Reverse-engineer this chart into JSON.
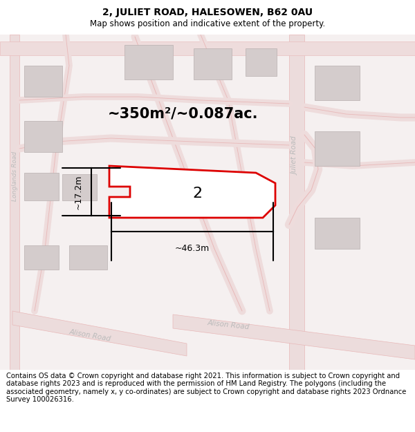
{
  "title": "2, JULIET ROAD, HALESOWEN, B62 0AU",
  "subtitle": "Map shows position and indicative extent of the property.",
  "footer": "Contains OS data © Crown copyright and database right 2021. This information is subject to Crown copyright and database rights 2023 and is reproduced with the permission of HM Land Registry. The polygons (including the associated geometry, namely x, y co-ordinates) are subject to Crown copyright and database rights 2023 Ordnance Survey 100026316.",
  "area_text": "~350m²/~0.087ac.",
  "width_text": "~46.3m",
  "height_text": "~17.2m",
  "plot_label": "2",
  "map_bg": "#f7f2f2",
  "road_color": "#e8b8b8",
  "building_color": "#d4cccc",
  "plot_line_color": "#dd0000",
  "road_label_color": "#bbbbbb",
  "title_fontsize": 10,
  "subtitle_fontsize": 8.5,
  "footer_fontsize": 7.2,
  "area_fontsize": 15,
  "label_fontsize": 16,
  "measure_fontsize": 9
}
